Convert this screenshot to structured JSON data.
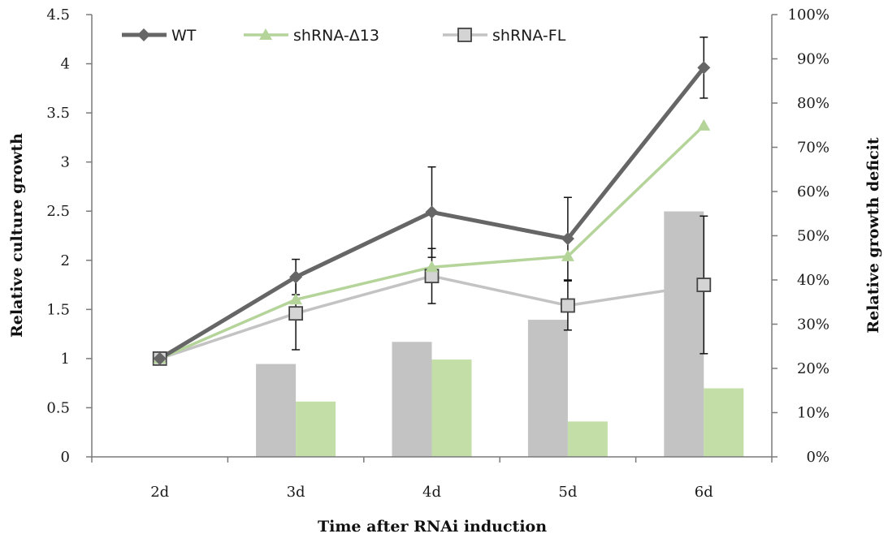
{
  "chart_data": {
    "type": "line",
    "categories": [
      "2d",
      "3d",
      "4d",
      "5d",
      "6d"
    ],
    "xlabel": "Time after RNAi induction",
    "ylabel": "Relative culture growth",
    "y2label": "Relative growth deficit",
    "ylim": [
      0,
      4.5
    ],
    "y2lim": [
      0,
      1.0
    ],
    "yticks": [
      "0",
      "0.5",
      "1",
      "1.5",
      "2",
      "2.5",
      "3",
      "3.5",
      "4",
      "4.5"
    ],
    "y2ticks": [
      "0%",
      "10%",
      "20%",
      "30%",
      "40%",
      "50%",
      "60%",
      "70%",
      "80%",
      "90%",
      "100%"
    ],
    "grid": false,
    "legend_position": "top",
    "lines": [
      {
        "name": "WT",
        "color": "#666666",
        "marker": "diamond",
        "values": [
          1.0,
          1.83,
          2.49,
          2.22,
          3.96
        ],
        "errors": [
          0,
          0.18,
          0.46,
          0.42,
          0.31
        ]
      },
      {
        "name": "shRNA-Δ13",
        "color": "#b4d49a",
        "marker": "triangle",
        "values": [
          1.0,
          1.6,
          1.93,
          2.04,
          3.37
        ],
        "errors": [
          0,
          0,
          0,
          0,
          0
        ]
      },
      {
        "name": "shRNA-FL",
        "color": "#c3c3c3",
        "marker": "square",
        "values": [
          1.0,
          1.46,
          1.84,
          1.54,
          1.75
        ],
        "errors": [
          0,
          0.37,
          0.28,
          0.25,
          0.7
        ]
      }
    ],
    "bars": [
      {
        "series": "shRNA-FL",
        "color": "#c3c3c3",
        "values": [
          null,
          0.21,
          0.26,
          0.31,
          0.555
        ]
      },
      {
        "series": "shRNA-Δ13",
        "color": "#c4dea8",
        "values": [
          null,
          0.125,
          0.22,
          0.08,
          0.155
        ]
      }
    ]
  }
}
